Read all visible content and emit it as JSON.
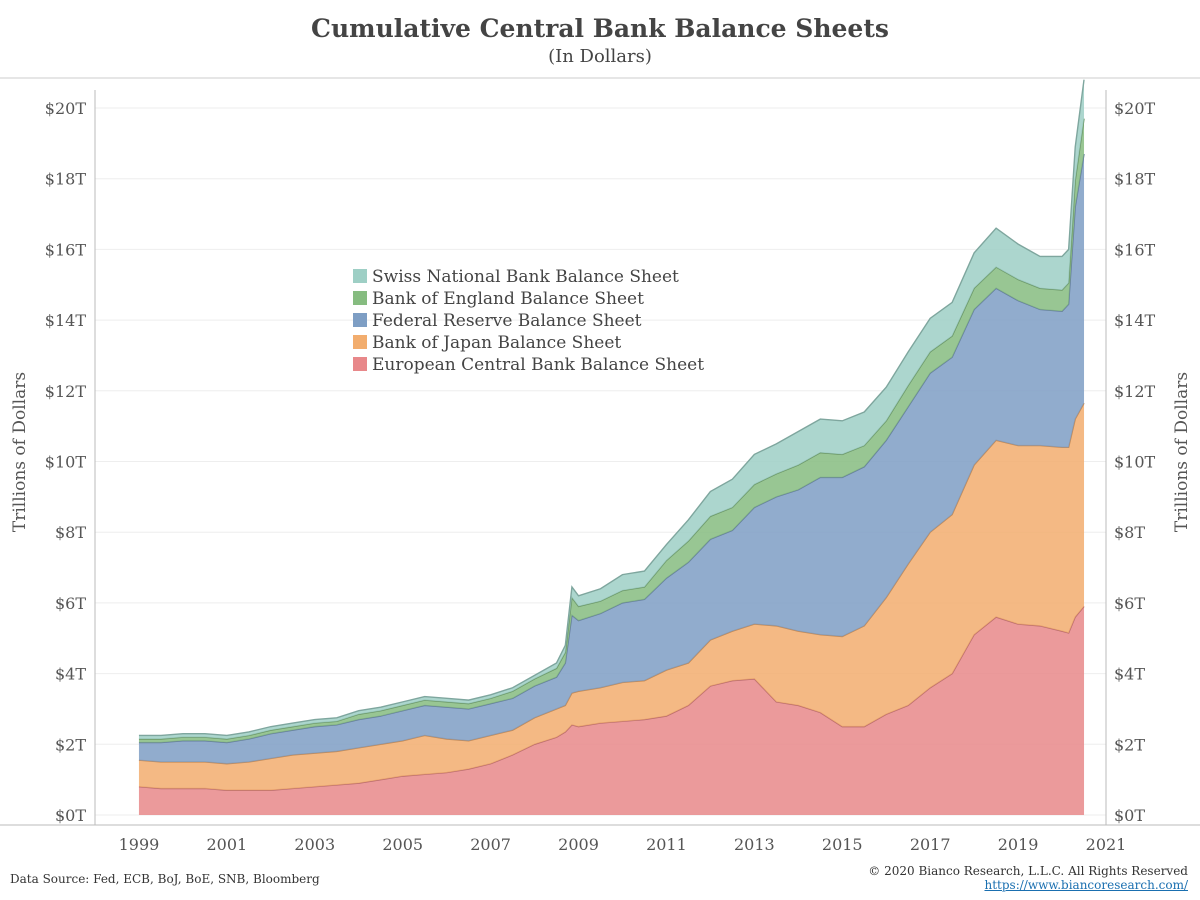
{
  "title": "Cumulative Central Bank Balance Sheets",
  "subtitle": "(In Dollars)",
  "source": "Data Source: Fed, ECB, BoJ, BoE, SNB, Bloomberg",
  "copyright": "© 2020 Bianco Research, L.L.C. All Rights Reserved",
  "url": "https://www.biancoresearch.com/",
  "chart_data": {
    "type": "area",
    "stacked": true,
    "ylabel": "Trillions of Dollars",
    "ylabel_right": "Trillions of Dollars",
    "ylim": [
      0,
      20
    ],
    "xlim": [
      1998.0,
      2021.0
    ],
    "y_ticks": [
      0,
      2,
      4,
      6,
      8,
      10,
      12,
      14,
      16,
      18,
      20
    ],
    "y_tick_labels": [
      "$0T",
      "$2T",
      "$4T",
      "$6T",
      "$8T",
      "$10T",
      "$12T",
      "$14T",
      "$16T",
      "$18T",
      "$20T"
    ],
    "x_ticks": [
      1999,
      2001,
      2003,
      2005,
      2007,
      2009,
      2011,
      2013,
      2015,
      2017,
      2019,
      2021
    ],
    "x_tick_labels": [
      "1999",
      "2001",
      "2003",
      "2005",
      "2007",
      "2009",
      "2011",
      "2013",
      "2015",
      "2017",
      "2019",
      "2021"
    ],
    "legend_position": "upper-left-center",
    "grid": true,
    "x": [
      1999.0,
      1999.5,
      2000.0,
      2000.2,
      2000.5,
      2001.0,
      2001.5,
      2002.0,
      2002.5,
      2003.0,
      2003.5,
      2004.0,
      2004.5,
      2005.0,
      2005.5,
      2006.0,
      2006.5,
      2007.0,
      2007.5,
      2008.0,
      2008.5,
      2008.7,
      2008.85,
      2009.0,
      2009.5,
      2010.0,
      2010.5,
      2011.0,
      2011.5,
      2012.0,
      2012.5,
      2013.0,
      2013.5,
      2014.0,
      2014.5,
      2015.0,
      2015.5,
      2016.0,
      2016.5,
      2017.0,
      2017.5,
      2018.0,
      2018.5,
      2019.0,
      2019.5,
      2020.0,
      2020.15,
      2020.3,
      2020.5
    ],
    "series": [
      {
        "name": "European Central Bank Balance Sheet",
        "color": "#e8888a",
        "values": [
          0.8,
          0.75,
          0.75,
          0.75,
          0.75,
          0.7,
          0.7,
          0.7,
          0.75,
          0.8,
          0.85,
          0.9,
          1.0,
          1.1,
          1.15,
          1.2,
          1.3,
          1.45,
          1.7,
          2.0,
          2.2,
          2.35,
          2.55,
          2.5,
          2.6,
          2.65,
          2.7,
          2.8,
          3.1,
          3.65,
          3.8,
          3.85,
          3.2,
          3.1,
          2.9,
          2.5,
          2.5,
          2.85,
          3.1,
          3.6,
          4.0,
          5.1,
          5.6,
          5.4,
          5.35,
          5.2,
          5.15,
          5.6,
          5.9
        ]
      },
      {
        "name": "Bank of Japan Balance Sheet",
        "color": "#f2ad6e",
        "values": [
          0.75,
          0.75,
          0.75,
          0.75,
          0.75,
          0.75,
          0.8,
          0.9,
          0.95,
          0.95,
          0.95,
          1.0,
          1.0,
          1.0,
          1.1,
          0.95,
          0.8,
          0.8,
          0.7,
          0.75,
          0.8,
          0.75,
          0.9,
          1.0,
          1.0,
          1.1,
          1.1,
          1.3,
          1.2,
          1.3,
          1.4,
          1.55,
          2.15,
          2.1,
          2.2,
          2.55,
          2.85,
          3.3,
          4.0,
          4.4,
          4.5,
          4.8,
          5.0,
          5.05,
          5.1,
          5.2,
          5.25,
          5.6,
          5.75
        ]
      },
      {
        "name": "Federal Reserve Balance Sheet",
        "color": "#7e9ec4",
        "values": [
          0.5,
          0.55,
          0.6,
          0.6,
          0.6,
          0.6,
          0.65,
          0.7,
          0.7,
          0.75,
          0.75,
          0.8,
          0.8,
          0.85,
          0.85,
          0.9,
          0.9,
          0.9,
          0.9,
          0.9,
          0.9,
          1.2,
          2.2,
          2.0,
          2.1,
          2.25,
          2.3,
          2.6,
          2.85,
          2.85,
          2.85,
          3.3,
          3.65,
          4.0,
          4.45,
          4.5,
          4.5,
          4.45,
          4.45,
          4.5,
          4.45,
          4.4,
          4.3,
          4.1,
          3.85,
          3.85,
          4.05,
          6.0,
          7.05
        ]
      },
      {
        "name": "Bank of England Balance Sheet",
        "color": "#86bc80",
        "values": [
          0.1,
          0.1,
          0.1,
          0.1,
          0.1,
          0.1,
          0.1,
          0.1,
          0.1,
          0.1,
          0.1,
          0.15,
          0.15,
          0.15,
          0.15,
          0.15,
          0.15,
          0.15,
          0.2,
          0.2,
          0.25,
          0.3,
          0.5,
          0.4,
          0.35,
          0.35,
          0.35,
          0.5,
          0.6,
          0.65,
          0.65,
          0.65,
          0.65,
          0.7,
          0.7,
          0.65,
          0.6,
          0.55,
          0.6,
          0.6,
          0.6,
          0.6,
          0.6,
          0.6,
          0.6,
          0.6,
          0.6,
          0.75,
          1.0
        ]
      },
      {
        "name": "Swiss National Bank Balance Sheet",
        "color": "#9ecfc5",
        "values": [
          0.1,
          0.1,
          0.1,
          0.1,
          0.1,
          0.1,
          0.1,
          0.1,
          0.1,
          0.1,
          0.1,
          0.1,
          0.1,
          0.1,
          0.1,
          0.1,
          0.1,
          0.1,
          0.1,
          0.1,
          0.15,
          0.2,
          0.3,
          0.3,
          0.35,
          0.45,
          0.45,
          0.45,
          0.6,
          0.7,
          0.8,
          0.85,
          0.85,
          0.95,
          0.95,
          0.95,
          0.95,
          0.95,
          0.95,
          0.95,
          0.95,
          1.0,
          1.1,
          1.0,
          0.9,
          0.95,
          0.95,
          0.95,
          1.1
        ]
      }
    ]
  }
}
